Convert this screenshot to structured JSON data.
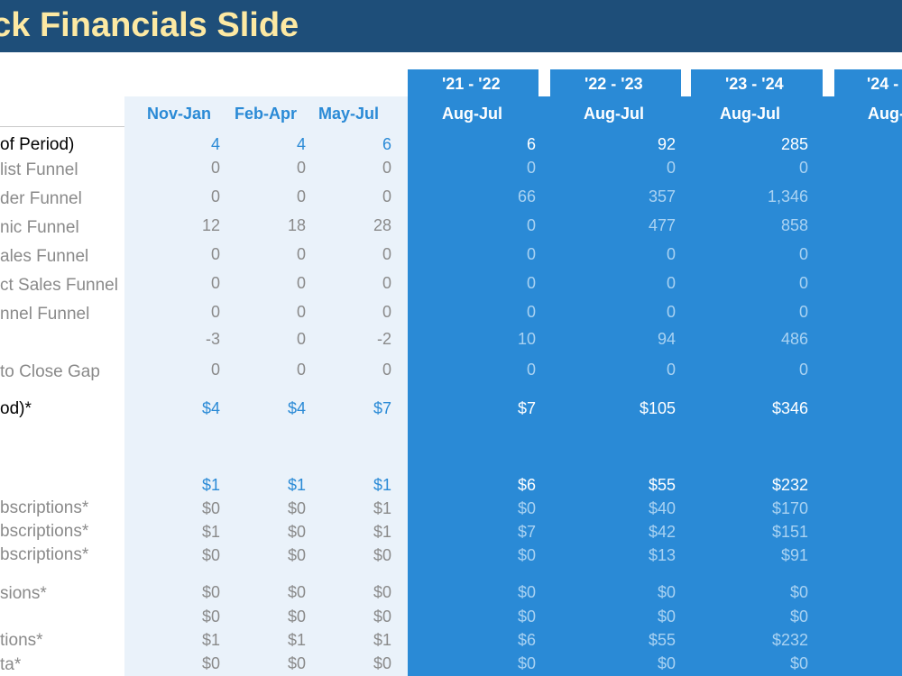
{
  "header": {
    "title": "eck Financials Slide"
  },
  "year_tabs": [
    "'21 - '22",
    "'22 - '23",
    "'23 - '24",
    "'24 -"
  ],
  "columns": {
    "monthly": [
      "Nov-Jan",
      "Feb-Apr",
      "May-Jul"
    ],
    "yearly": [
      "Aug-Jul",
      "Aug-Jul",
      "Aug-Jul",
      "Aug-"
    ]
  },
  "rows": [
    {
      "label": "of Period)",
      "style": "bold",
      "values": [
        "4",
        "4",
        "6",
        "6",
        "92",
        "285"
      ]
    },
    {
      "label": "list Funnel",
      "style": "light",
      "values": [
        "0",
        "0",
        "0",
        "0",
        "0",
        "0"
      ]
    },
    {
      "label": "der Funnel",
      "style": "light",
      "values": [
        "0",
        "0",
        "0",
        "66",
        "357",
        "1,346"
      ]
    },
    {
      "label": "nic Funnel",
      "style": "light",
      "values": [
        "12",
        "18",
        "28",
        "0",
        "477",
        "858"
      ]
    },
    {
      "label": "ales Funnel",
      "style": "light",
      "values": [
        "0",
        "0",
        "0",
        "0",
        "0",
        "0"
      ]
    },
    {
      "label": "ct Sales Funnel",
      "style": "light",
      "values": [
        "0",
        "0",
        "0",
        "0",
        "0",
        "0"
      ]
    },
    {
      "label": "nnel Funnel",
      "style": "light",
      "values": [
        "0",
        "0",
        "0",
        "0",
        "0",
        "0"
      ]
    },
    {
      "label": "",
      "style": "light",
      "values": [
        "-3",
        "0",
        "-2",
        "10",
        "94",
        "486"
      ]
    },
    {
      "label": "to Close Gap",
      "style": "light",
      "values": [
        "0",
        "0",
        "0",
        "0",
        "0",
        "0"
      ]
    },
    {
      "label": "od)*",
      "style": "bold",
      "values": [
        "$4",
        "$4",
        "$7",
        "$7",
        "$105",
        "$346"
      ]
    },
    {
      "label": "",
      "style": "bold",
      "values": [
        "$1",
        "$1",
        "$1",
        "$6",
        "$55",
        "$232"
      ]
    },
    {
      "label": "bscriptions*",
      "style": "light",
      "values": [
        "$0",
        "$0",
        "$1",
        "$0",
        "$40",
        "$170"
      ]
    },
    {
      "label": "bscriptions*",
      "style": "light",
      "values": [
        "$1",
        "$0",
        "$1",
        "$7",
        "$42",
        "$151"
      ]
    },
    {
      "label": "bscriptions*",
      "style": "light",
      "values": [
        "$0",
        "$0",
        "$0",
        "$0",
        "$13",
        "$91"
      ]
    },
    {
      "label": "sions*",
      "style": "light",
      "values": [
        "$0",
        "$0",
        "$0",
        "$0",
        "$0",
        "$0"
      ]
    },
    {
      "label": "",
      "style": "light",
      "values": [
        "$0",
        "$0",
        "$0",
        "$0",
        "$0",
        "$0"
      ]
    },
    {
      "label": "tions*",
      "style": "light",
      "values": [
        "$1",
        "$1",
        "$1",
        "$6",
        "$55",
        "$232"
      ]
    },
    {
      "label": "ta*",
      "style": "light",
      "values": [
        "$0",
        "$0",
        "$0",
        "$0",
        "$0",
        "$0"
      ]
    }
  ]
}
